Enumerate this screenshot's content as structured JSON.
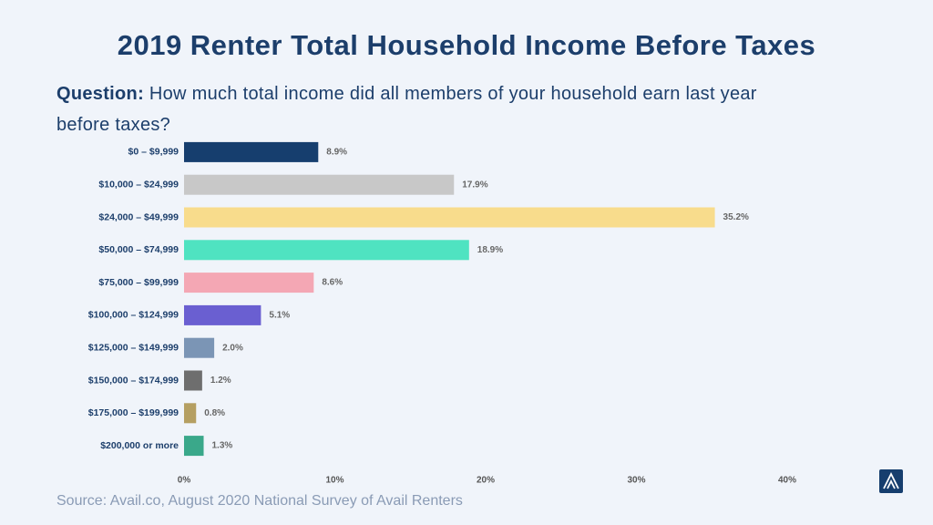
{
  "chart_data": {
    "type": "bar",
    "orientation": "horizontal",
    "title": "2019 Renter Total Household Income Before Taxes",
    "question_label": "Question:",
    "question": "How much total income did all members of your household earn last year before taxes?",
    "source": "Source: Avail.co, August 2020 National Survey of Avail Renters",
    "categories": [
      "$0 – $9,999",
      "$10,000 – $24,999",
      "$24,000 – $49,999",
      "$50,000 – $74,999",
      "$75,000 – $99,999",
      "$100,000 – $124,999",
      "$125,000 – $149,999",
      "$150,000 – $174,999",
      "$175,000 – $199,999",
      "$200,000 or more"
    ],
    "values": [
      8.9,
      17.9,
      35.2,
      18.9,
      8.6,
      5.1,
      2.0,
      1.2,
      0.8,
      1.3
    ],
    "value_labels": [
      "8.9%",
      "17.9%",
      "35.2%",
      "18.9%",
      "8.6%",
      "5.1%",
      "2.0%",
      "1.2%",
      "0.8%",
      "1.3%"
    ],
    "colors": [
      "#163e6e",
      "#c8c8c8",
      "#f8dc8c",
      "#4fe3c1",
      "#f4a7b4",
      "#6a5fd1",
      "#7b95b5",
      "#6e6e6e",
      "#b59f62",
      "#3aa88a"
    ],
    "xlim": [
      0,
      40
    ],
    "xticks": [
      {
        "value": 0,
        "label": "0%"
      },
      {
        "value": 10,
        "label": "10%"
      },
      {
        "value": 20,
        "label": "20%"
      },
      {
        "value": 30,
        "label": "30%"
      },
      {
        "value": 40,
        "label": "40%"
      }
    ],
    "grid": false
  }
}
